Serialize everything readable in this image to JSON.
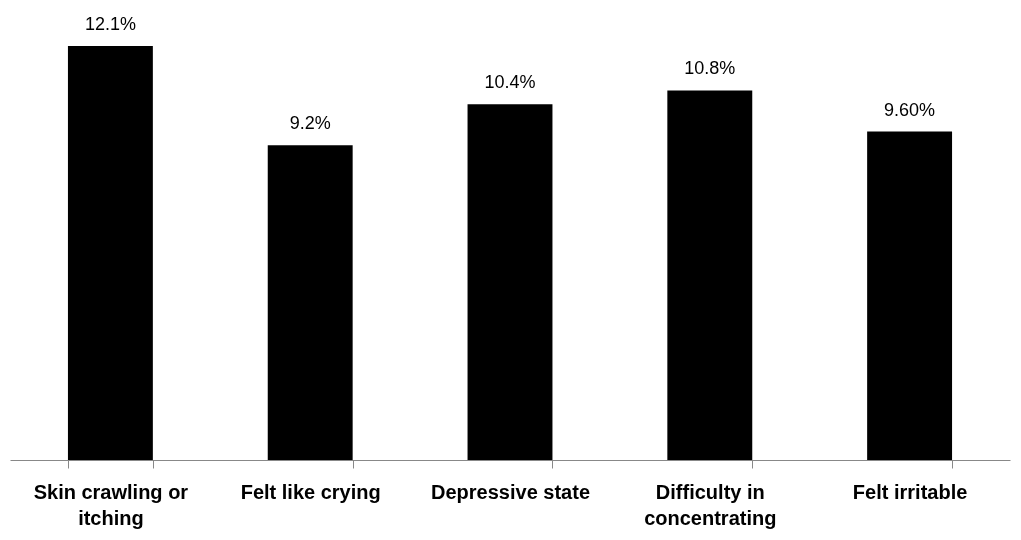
{
  "chart_data": {
    "type": "bar",
    "categories": [
      "Skin crawling or itching",
      "Felt like crying",
      "Depressive state",
      "Difficulty in concentrating",
      "Felt irritable"
    ],
    "values": [
      12.1,
      9.2,
      10.4,
      10.8,
      9.6
    ],
    "value_labels": [
      "12.1%",
      "9.2%",
      "10.4%",
      "10.8%",
      "9.60%"
    ],
    "color": "#000000"
  }
}
